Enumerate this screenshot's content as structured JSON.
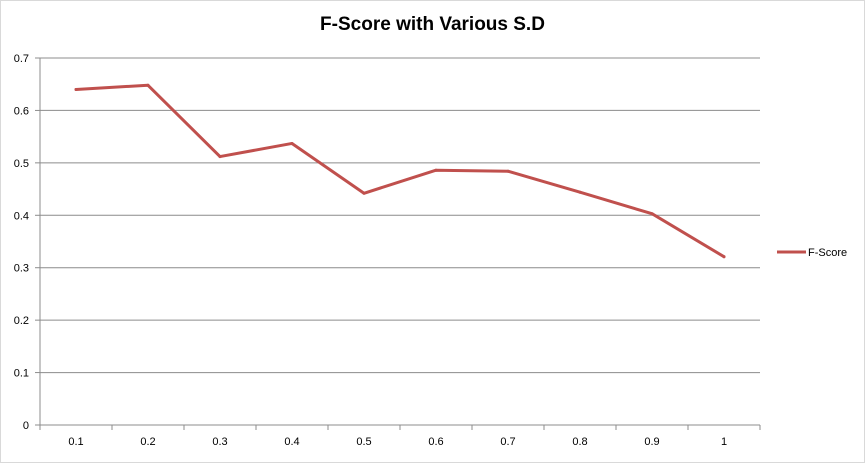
{
  "chart_data": {
    "type": "line",
    "title": "F-Score with Various S.D",
    "categories": [
      "0.1",
      "0.2",
      "0.3",
      "0.4",
      "0.5",
      "0.6",
      "0.7",
      "0.8",
      "0.9",
      "1"
    ],
    "series": [
      {
        "name": "F-Score",
        "values": [
          0.64,
          0.648,
          0.512,
          0.537,
          0.442,
          0.486,
          0.484,
          0.444,
          0.403,
          0.321
        ],
        "color": "#c0504d"
      }
    ],
    "y_ticks": [
      "0",
      "0.1",
      "0.2",
      "0.3",
      "0.4",
      "0.5",
      "0.6",
      "0.7"
    ],
    "ylim": [
      0,
      0.7
    ],
    "grid": true,
    "legend_position": "right"
  }
}
